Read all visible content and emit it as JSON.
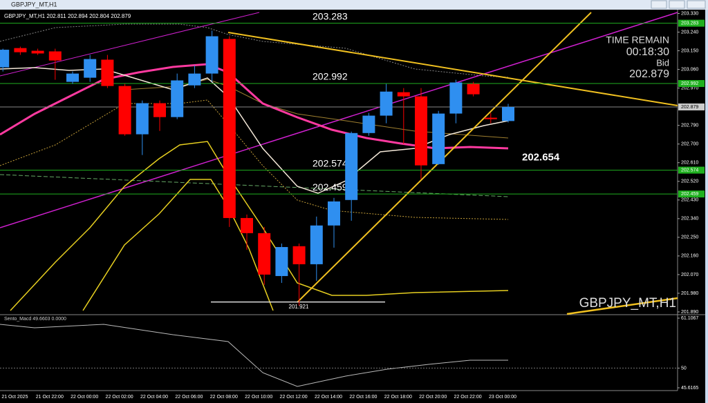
{
  "chart_data": {
    "type": "candlestick",
    "symbol": "GBPJPY_MT,H1",
    "categories": [
      null,
      "21 Oct 2025",
      null,
      "21 Oct 22:00",
      null,
      "22 Oct 00:00",
      null,
      "22 Oct 02:00",
      null,
      "22 Oct 04:00",
      null,
      "22 Oct 06:00",
      null,
      "22 Oct 08:00",
      null,
      "22 Oct 10:00",
      null,
      "22 Oct 12:00",
      null,
      "22 Oct 14:00",
      null,
      "22 Oct 16:00",
      null,
      "22 Oct 18:00",
      null,
      "22 Oct 20:00",
      null,
      "22 Oct 22:00",
      null,
      "23 Oct 00:00"
    ],
    "open": [
      203.07,
      203.163,
      203.15,
      203.147,
      203.0,
      203.02,
      203.107,
      202.98,
      202.747,
      202.897,
      202.83,
      202.983,
      203.04,
      203.207,
      202.343,
      202.27,
      202.063,
      202.207,
      202.12,
      202.307,
      202.43,
      202.753,
      202.837,
      202.95,
      202.93,
      202.603,
      202.847,
      202.99,
      202.827,
      202.811
    ],
    "high": [
      203.16,
      203.17,
      203.16,
      203.16,
      203.05,
      203.13,
      203.13,
      202.99,
      202.91,
      202.91,
      203.04,
      203.08,
      203.247,
      203.22,
      202.36,
      202.3,
      202.22,
      202.22,
      202.35,
      202.44,
      202.76,
      202.85,
      202.99,
      202.97,
      202.97,
      202.86,
      203.01,
      203.0,
      202.85,
      202.894
    ],
    "low": [
      203.05,
      203.13,
      203.13,
      203.01,
      202.99,
      203.0,
      202.97,
      202.74,
      202.647,
      202.763,
      202.82,
      202.97,
      203.0,
      202.3,
      202.19,
      202.02,
      202.03,
      201.92,
      202.04,
      202.2,
      202.33,
      202.74,
      202.8,
      202.7,
      202.53,
      202.6,
      202.8,
      202.93,
      202.8,
      202.804
    ],
    "close": [
      203.155,
      203.143,
      203.137,
      203.103,
      203.04,
      203.11,
      202.98,
      202.747,
      202.897,
      202.83,
      203.007,
      203.04,
      203.22,
      202.343,
      202.27,
      202.07,
      202.203,
      202.12,
      202.307,
      202.423,
      202.753,
      202.837,
      202.953,
      202.93,
      202.597,
      202.847,
      202.997,
      202.94,
      202.82,
      202.879
    ],
    "up_color": "#2f8ff0",
    "down_color": "#ff0000",
    "ylim": [
      201.88,
      203.345
    ],
    "yticks": [
      {
        "value": 203.33,
        "label": "203.330"
      },
      {
        "value": 203.24,
        "label": "203.240"
      },
      {
        "value": 203.15,
        "label": "203.150"
      },
      {
        "value": 203.06,
        "label": "203.060"
      },
      {
        "value": 202.97,
        "label": "202.970"
      },
      {
        "value": 202.79,
        "label": "202.790"
      },
      {
        "value": 202.7,
        "label": "202.700"
      },
      {
        "value": 202.61,
        "label": "202.610"
      },
      {
        "value": 202.52,
        "label": "202.520"
      },
      {
        "value": 202.43,
        "label": "202.430"
      },
      {
        "value": 202.34,
        "label": "202.340"
      },
      {
        "value": 202.25,
        "label": "202.250"
      },
      {
        "value": 202.16,
        "label": "202.160"
      },
      {
        "value": 202.07,
        "label": "202.070"
      },
      {
        "value": 201.98,
        "label": "201.980"
      },
      {
        "value": 201.89,
        "label": "201.890"
      }
    ],
    "levels": [
      203.283,
      202.992,
      202.574,
      202.459
    ],
    "bid": 202.879,
    "ma_label": 202.654,
    "low_marker": 201.921,
    "timer": {
      "title": "TIME REMAIN",
      "time": "00:18:30",
      "bid_label": "Bid"
    },
    "indicator": {
      "label": "Sento_Macd 49.6603 0.0000",
      "ylim": [
        45.0,
        61.57
      ],
      "yticks": [
        61.1067,
        50,
        45.6165
      ]
    }
  }
}
